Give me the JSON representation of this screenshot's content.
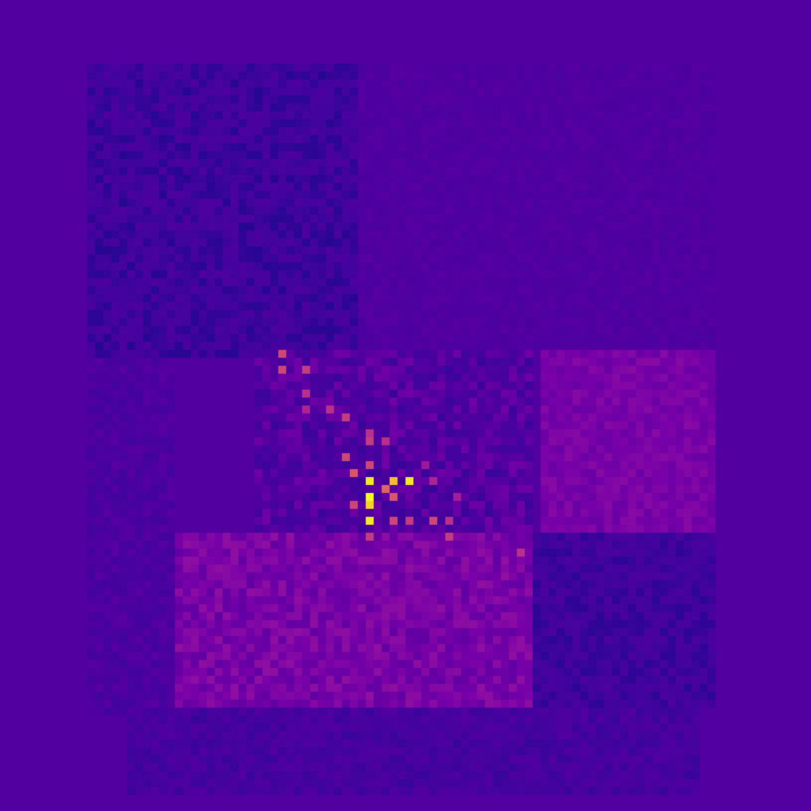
{
  "chart_data": {
    "type": "heatmap",
    "title": "",
    "xlabel": "",
    "ylabel": "",
    "grid": false,
    "legend": "none",
    "colormap": "plasma",
    "value_range": [
      0,
      1
    ],
    "rows": 102,
    "cols": 102,
    "background_value": 0.2,
    "regions": [
      {
        "name": "upper-left-dark",
        "rows": [
          8,
          45
        ],
        "cols": [
          11,
          45
        ],
        "value": 0.12,
        "noise": 0.06
      },
      {
        "name": "upper-right",
        "rows": [
          8,
          44
        ],
        "cols": [
          45,
          90
        ],
        "value": 0.19,
        "noise": 0.025
      },
      {
        "name": "left-strip",
        "rows": [
          45,
          90
        ],
        "cols": [
          11,
          22
        ],
        "value": 0.17,
        "noise": 0.05
      },
      {
        "name": "center-block",
        "rows": [
          44,
          68
        ],
        "cols": [
          32,
          67
        ],
        "value": 0.19,
        "noise": 0.09
      },
      {
        "name": "right-mid-block",
        "rows": [
          44,
          67
        ],
        "cols": [
          68,
          90
        ],
        "value": 0.3,
        "noise": 0.04
      },
      {
        "name": "bottom-left-block",
        "rows": [
          67,
          89
        ],
        "cols": [
          22,
          67
        ],
        "value": 0.3,
        "noise": 0.06
      },
      {
        "name": "bottom-right-block",
        "rows": [
          67,
          89
        ],
        "cols": [
          67,
          90
        ],
        "value": 0.12,
        "noise": 0.05
      },
      {
        "name": "bottom-strip",
        "rows": [
          89,
          100
        ],
        "cols": [
          16,
          88
        ],
        "value": 0.15,
        "noise": 0.05
      }
    ],
    "hotspots": [
      {
        "row": 44,
        "col": 35,
        "value": 0.6
      },
      {
        "row": 46,
        "col": 35,
        "value": 0.6
      },
      {
        "row": 46,
        "col": 38,
        "value": 0.55
      },
      {
        "row": 49,
        "col": 38,
        "value": 0.5
      },
      {
        "row": 51,
        "col": 38,
        "value": 0.45
      },
      {
        "row": 51,
        "col": 41,
        "value": 0.5
      },
      {
        "row": 52,
        "col": 43,
        "value": 0.55
      },
      {
        "row": 54,
        "col": 46,
        "value": 0.5
      },
      {
        "row": 55,
        "col": 46,
        "value": 0.55
      },
      {
        "row": 55,
        "col": 48,
        "value": 0.5
      },
      {
        "row": 57,
        "col": 43,
        "value": 0.6
      },
      {
        "row": 58,
        "col": 46,
        "value": 0.6
      },
      {
        "row": 59,
        "col": 44,
        "value": 0.65
      },
      {
        "row": 60,
        "col": 46,
        "value": 0.98
      },
      {
        "row": 60,
        "col": 49,
        "value": 0.92
      },
      {
        "row": 60,
        "col": 51,
        "value": 0.98
      },
      {
        "row": 61,
        "col": 48,
        "value": 0.7
      },
      {
        "row": 62,
        "col": 46,
        "value": 1.0
      },
      {
        "row": 62,
        "col": 49,
        "value": 0.65
      },
      {
        "row": 63,
        "col": 46,
        "value": 0.95
      },
      {
        "row": 63,
        "col": 44,
        "value": 0.6
      },
      {
        "row": 65,
        "col": 46,
        "value": 0.98
      },
      {
        "row": 65,
        "col": 49,
        "value": 0.6
      },
      {
        "row": 65,
        "col": 51,
        "value": 0.55
      },
      {
        "row": 65,
        "col": 54,
        "value": 0.6
      },
      {
        "row": 65,
        "col": 56,
        "value": 0.5
      },
      {
        "row": 67,
        "col": 46,
        "value": 0.55
      },
      {
        "row": 67,
        "col": 56,
        "value": 0.55
      },
      {
        "row": 69,
        "col": 65,
        "value": 0.5
      },
      {
        "row": 60,
        "col": 54,
        "value": 0.45
      },
      {
        "row": 62,
        "col": 57,
        "value": 0.42
      },
      {
        "row": 58,
        "col": 53,
        "value": 0.4
      }
    ]
  }
}
